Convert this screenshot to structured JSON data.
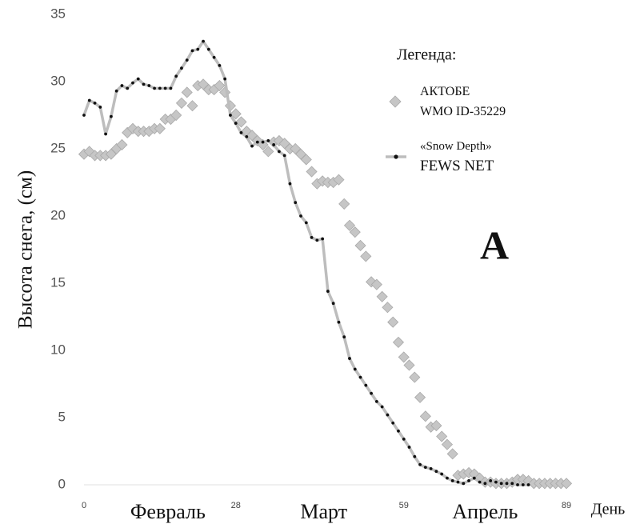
{
  "chart_data": {
    "type": "line",
    "y_label": "Высота снега,  (см)",
    "annotation": "A",
    "legend_title": "Легенда:",
    "month_labels": [
      "Февраль",
      "Март",
      "Апрель"
    ],
    "x_unit_label": "День",
    "xlim": [
      0,
      89
    ],
    "xticks": [
      0,
      28,
      59,
      89
    ],
    "ylim": [
      0,
      35
    ],
    "yticks": [
      0,
      5,
      10,
      15,
      20,
      25,
      30,
      35
    ],
    "grid": false,
    "x": [
      0,
      1,
      2,
      3,
      4,
      5,
      6,
      7,
      8,
      9,
      10,
      11,
      12,
      13,
      14,
      15,
      16,
      17,
      18,
      19,
      20,
      21,
      22,
      23,
      24,
      25,
      26,
      27,
      28,
      29,
      30,
      31,
      32,
      33,
      34,
      35,
      36,
      37,
      38,
      39,
      40,
      41,
      42,
      43,
      44,
      45,
      46,
      47,
      48,
      49,
      50,
      51,
      52,
      53,
      54,
      55,
      56,
      57,
      58,
      59,
      60,
      61,
      62,
      63,
      64,
      65,
      66,
      67,
      68,
      69,
      70,
      71,
      72,
      73,
      74,
      75,
      76,
      77,
      78,
      79,
      80,
      81,
      82,
      83,
      84,
      85,
      86,
      87,
      88,
      89
    ],
    "series": [
      {
        "name": "АКТОБЕ\nWMO ID-35229",
        "marker": "diamond",
        "color": "#c6c6c6",
        "values": [
          24.6,
          24.8,
          24.5,
          24.5,
          24.5,
          24.6,
          25,
          25.3,
          26.2,
          26.5,
          26.3,
          26.3,
          26.3,
          26.5,
          26.5,
          27.2,
          27.2,
          27.5,
          28.4,
          29.2,
          28.2,
          29.7,
          29.8,
          29.4,
          29.4,
          29.7,
          29.2,
          28.2,
          27.6,
          27,
          26.3,
          26,
          25.6,
          25.3,
          24.8,
          25.5,
          25.6,
          25.4,
          25,
          25,
          24.6,
          24.2,
          23.3,
          22.4,
          22.6,
          22.5,
          22.5,
          22.7,
          20.9,
          19.3,
          18.8,
          17.8,
          17,
          15.1,
          14.9,
          14,
          13.2,
          12.1,
          10.6,
          9.5,
          8.9,
          8,
          6.5,
          5.1,
          4.3,
          4.4,
          3.6,
          3,
          2.3,
          0.7,
          0.8,
          0.9,
          0.8,
          0.5,
          0.2,
          0.2,
          0.1,
          0.1,
          0.1,
          0.2,
          0.4,
          0.4,
          0.3,
          0.1,
          0.1,
          0.1,
          0.1,
          0.1,
          0.1,
          0.1
        ]
      },
      {
        "name": "«Snow Depth»\nFEWS NET",
        "marker": "dot",
        "color": "#bdbdbd",
        "marker_color": "#111111",
        "values": [
          27.5,
          28.6,
          28.4,
          28.1,
          26.1,
          27.4,
          29.3,
          29.7,
          29.5,
          29.9,
          30.2,
          29.8,
          29.7,
          29.5,
          29.5,
          29.5,
          29.5,
          30.4,
          31,
          31.6,
          32.3,
          32.4,
          33,
          32.4,
          31.8,
          31.2,
          30.2,
          27.5,
          26.9,
          26.2,
          25.9,
          25.2,
          25.5,
          25.5,
          25.6,
          25.3,
          24.8,
          24.5,
          22.4,
          21,
          20,
          19.5,
          18.4,
          18.2,
          18.3,
          14.4,
          13.5,
          12.1,
          11,
          9.4,
          8.6,
          8,
          7.4,
          6.8,
          6.2,
          5.8,
          5.2,
          4.6,
          4,
          3.4,
          2.8,
          2.1,
          1.5,
          1.3,
          1.2,
          1,
          0.8,
          0.5,
          0.3,
          0.2,
          0.1,
          0.3,
          0.5,
          0.2,
          0.1,
          0.3,
          0.2,
          0.1,
          0.1,
          0.1,
          0,
          0,
          0,
          null,
          null,
          null,
          null,
          null,
          null,
          null
        ]
      }
    ]
  }
}
